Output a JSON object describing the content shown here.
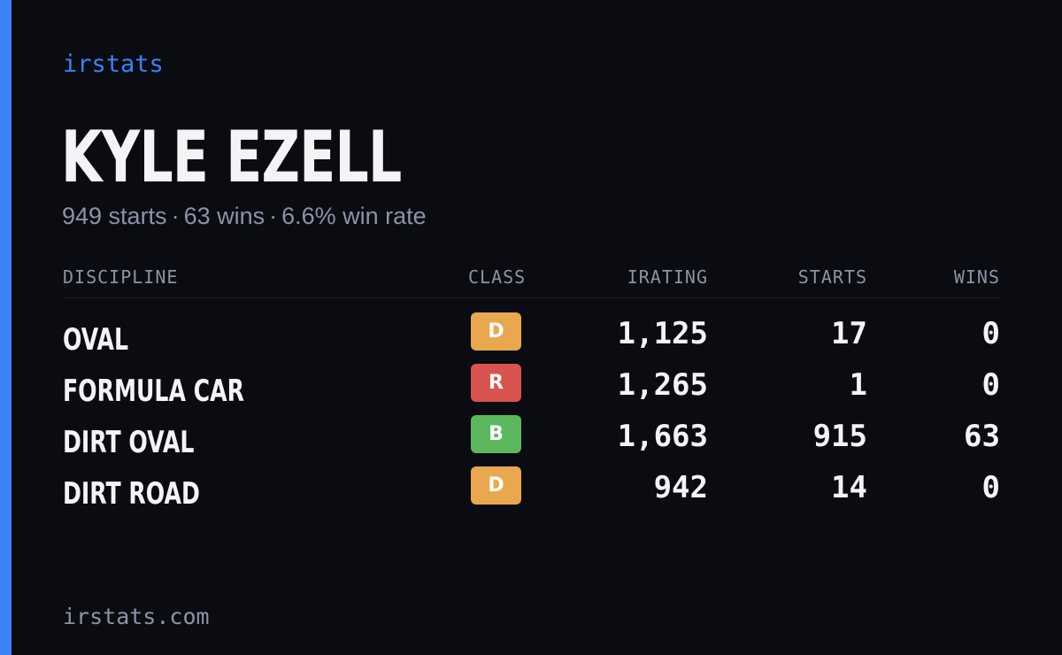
{
  "brand": "irstats",
  "driver": {
    "name": "KYLE EZELL",
    "starts_text": "949 starts",
    "wins_text": "63 wins",
    "win_rate_text": "6.6% win rate",
    "separator": "·"
  },
  "table": {
    "headers": {
      "discipline": "DISCIPLINE",
      "class": "CLASS",
      "irating": "IRATING",
      "starts": "STARTS",
      "wins": "WINS"
    },
    "rows": [
      {
        "discipline": "OVAL",
        "class": "D",
        "class_color": "#e9a84d",
        "irating": "1,125",
        "starts": "17",
        "wins": "0"
      },
      {
        "discipline": "FORMULA CAR",
        "class": "R",
        "class_color": "#d9534f",
        "irating": "1,265",
        "starts": "1",
        "wins": "0"
      },
      {
        "discipline": "DIRT OVAL",
        "class": "B",
        "class_color": "#5cb85c",
        "irating": "1,663",
        "starts": "915",
        "wins": "63"
      },
      {
        "discipline": "DIRT ROAD",
        "class": "D",
        "class_color": "#e9a84d",
        "irating": "942",
        "starts": "14",
        "wins": "0"
      }
    ]
  },
  "footer": {
    "url": "irstats.com"
  },
  "colors": {
    "accent": "#3b82f6",
    "background": "#0a0c12",
    "text_primary": "#f3f4f6",
    "text_muted": "#8b93a6"
  }
}
